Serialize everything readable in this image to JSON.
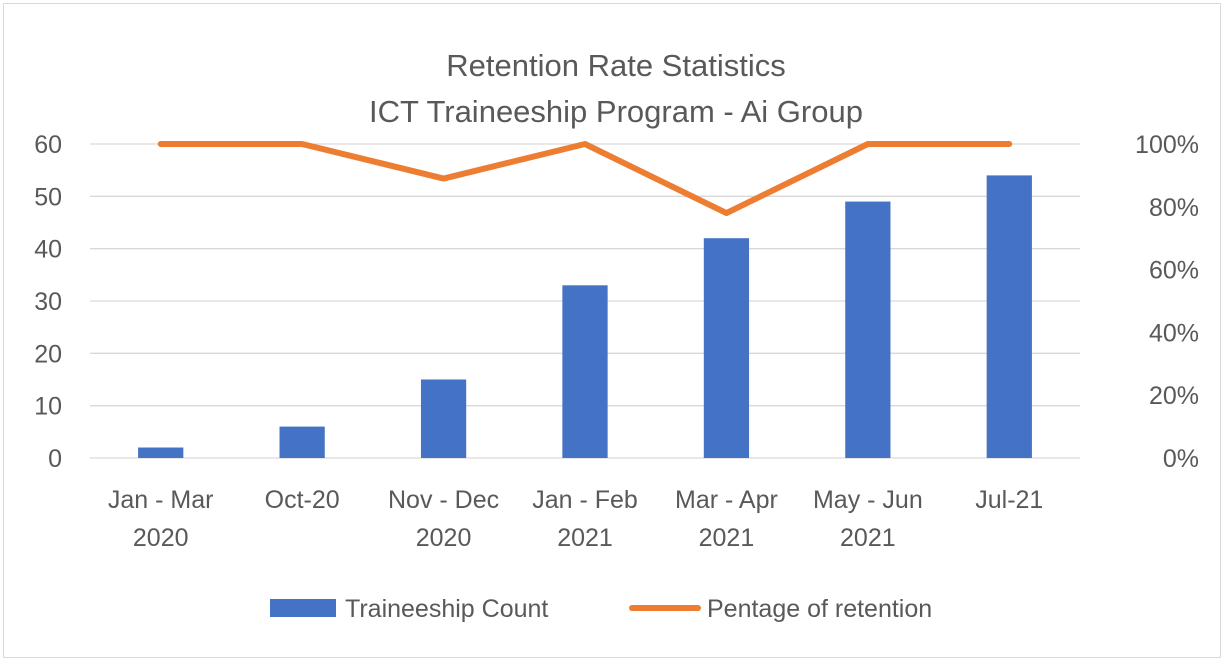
{
  "chart_data": {
    "type": "bar",
    "title": "Retention Rate Statistics",
    "subtitle": "ICT Traineeship Program - Ai Group",
    "categories": [
      [
        "Jan - Mar",
        "2020"
      ],
      [
        "Oct-20"
      ],
      [
        "Nov - Dec",
        "2020"
      ],
      [
        "Jan - Feb",
        "2021"
      ],
      [
        "Mar - Apr",
        "2021"
      ],
      [
        "May - Jun",
        "2021"
      ],
      [
        "Jul-21"
      ]
    ],
    "series": [
      {
        "name": "Traineeship Count",
        "type": "bar",
        "axis": "left",
        "color": "#4472c4",
        "values": [
          2,
          6,
          15,
          33,
          42,
          49,
          54
        ]
      },
      {
        "name": "Pentage of retention",
        "type": "line",
        "axis": "right",
        "color": "#ed7d31",
        "values": [
          1.0,
          1.0,
          0.89,
          1.0,
          0.78,
          1.0,
          1.0
        ]
      }
    ],
    "y_left": {
      "min": 0,
      "max": 60,
      "step": 10,
      "tick_labels": [
        "0",
        "10",
        "20",
        "30",
        "40",
        "50",
        "60"
      ]
    },
    "y_right": {
      "min": 0,
      "max": 1,
      "step": 0.2,
      "tick_labels": [
        "0%",
        "20%",
        "40%",
        "60%",
        "80%",
        "100%"
      ]
    },
    "grid": true,
    "legend": "bottom"
  }
}
